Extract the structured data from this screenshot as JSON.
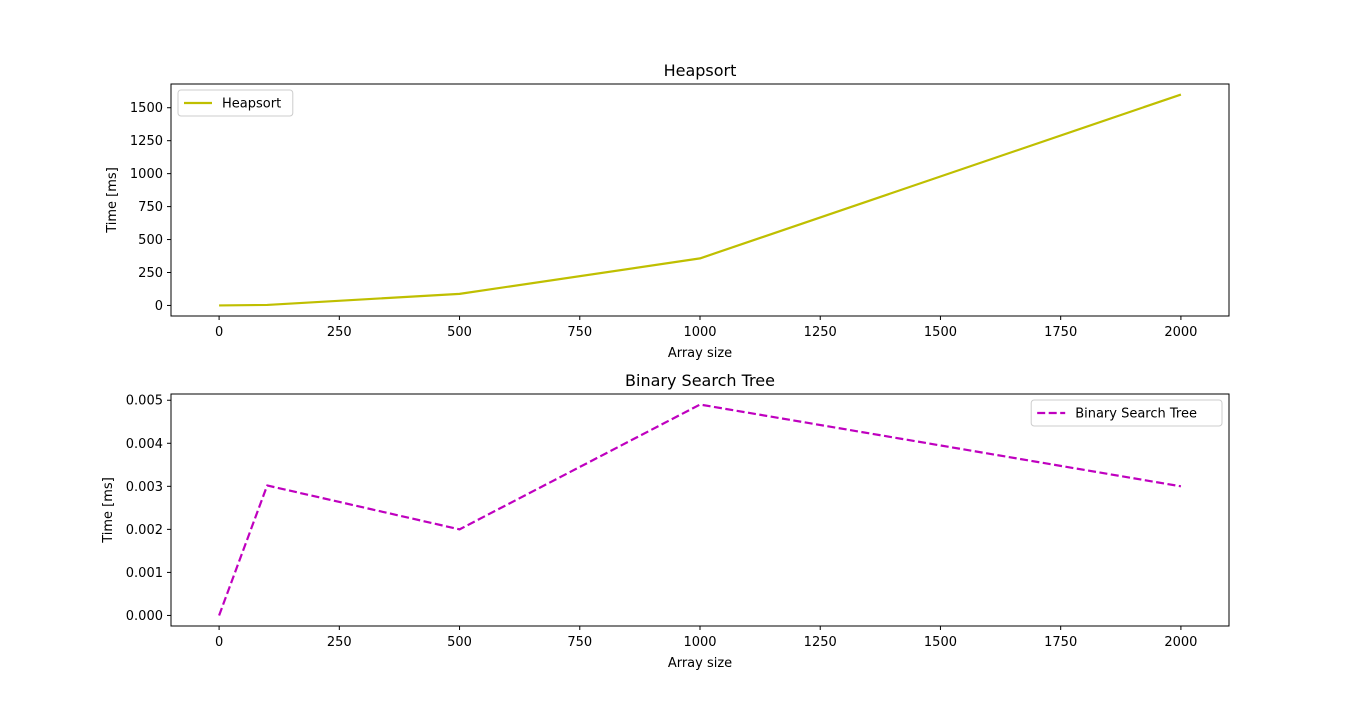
{
  "chart_data": [
    {
      "type": "line",
      "title": "Heapsort",
      "xlabel": "Array size",
      "ylabel": "Time [ms]",
      "xlim": [
        -100,
        2100
      ],
      "ylim": [
        -80,
        1680
      ],
      "xticks": [
        0,
        250,
        500,
        750,
        1000,
        1250,
        1500,
        1750,
        2000
      ],
      "yticks": [
        0,
        250,
        500,
        750,
        1000,
        1250,
        1500
      ],
      "ytick_labels": [
        "0",
        "250",
        "500",
        "750",
        "1000",
        "1250",
        "1500"
      ],
      "grid": false,
      "legend_position": "upper left",
      "series": [
        {
          "name": "Heapsort",
          "color": "#bfbf00",
          "dash": "solid",
          "x": [
            0,
            100,
            500,
            1000,
            2000
          ],
          "y": [
            0,
            4,
            88,
            357,
            1600
          ]
        }
      ]
    },
    {
      "type": "line",
      "title": "Binary Search Tree",
      "xlabel": "Array size",
      "ylabel": "Time [ms]",
      "xlim": [
        -100,
        2100
      ],
      "ylim": [
        -0.000245,
        0.005145
      ],
      "xticks": [
        0,
        250,
        500,
        750,
        1000,
        1250,
        1500,
        1750,
        2000
      ],
      "yticks": [
        0,
        0.001,
        0.002,
        0.003,
        0.004,
        0.005
      ],
      "ytick_labels": [
        "0.000",
        "0.001",
        "0.002",
        "0.003",
        "0.004",
        "0.005"
      ],
      "grid": false,
      "legend_position": "upper right",
      "series": [
        {
          "name": "Binary Search Tree",
          "color": "#bf00bf",
          "dash": "dashed",
          "x": [
            0,
            100,
            500,
            1000,
            2000
          ],
          "y": [
            0.0,
            0.00302,
            0.002,
            0.0049,
            0.003
          ]
        }
      ]
    }
  ]
}
